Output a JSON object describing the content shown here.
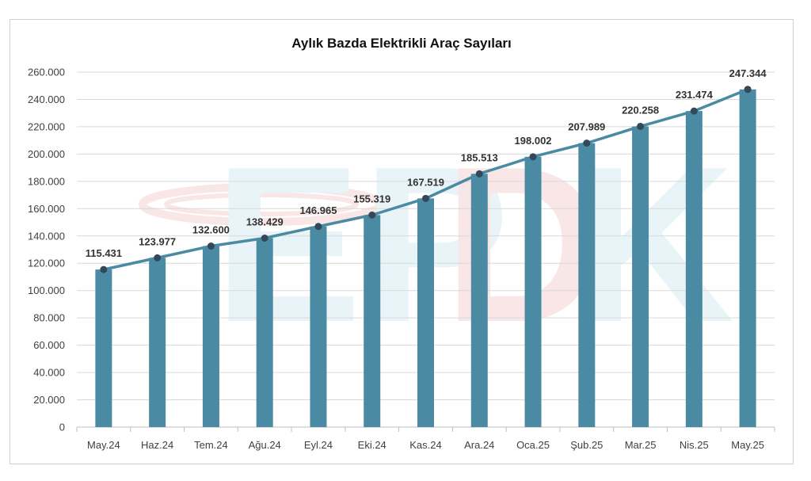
{
  "chart_data": {
    "type": "bar",
    "title": "Aylık Bazda Elektrikli Araç Sayıları",
    "categories": [
      "May.24",
      "Haz.24",
      "Tem.24",
      "Ağu.24",
      "Eyl.24",
      "Eki.24",
      "Kas.24",
      "Ara.24",
      "Oca.25",
      "Şub.25",
      "Mar.25",
      "Nis.25",
      "May.25"
    ],
    "values": [
      115431,
      123977,
      132600,
      138429,
      146965,
      155319,
      167519,
      185513,
      198002,
      207989,
      220258,
      231474,
      247344
    ],
    "data_labels": [
      "115.431",
      "123.977",
      "132.600",
      "138.429",
      "146.965",
      "155.319",
      "167.519",
      "185.513",
      "198.002",
      "207.989",
      "220.258",
      "231.474",
      "247.344"
    ],
    "overlay_line": true,
    "ylim": [
      0,
      260000
    ],
    "y_ticks": [
      0,
      20000,
      40000,
      60000,
      80000,
      100000,
      120000,
      140000,
      160000,
      180000,
      200000,
      220000,
      240000,
      260000
    ],
    "y_tick_labels": [
      "0",
      "20.000",
      "40.000",
      "60.000",
      "80.000",
      "100.000",
      "120.000",
      "140.000",
      "160.000",
      "180.000",
      "200.000",
      "220.000",
      "240.000",
      "260.000"
    ],
    "grid": true,
    "legend": "none",
    "watermark": "EPDK",
    "colors": {
      "bar": "#4a8aa3",
      "line": "#4a8aa3",
      "marker": "#33495a",
      "grid": "#d9d9d9"
    }
  }
}
